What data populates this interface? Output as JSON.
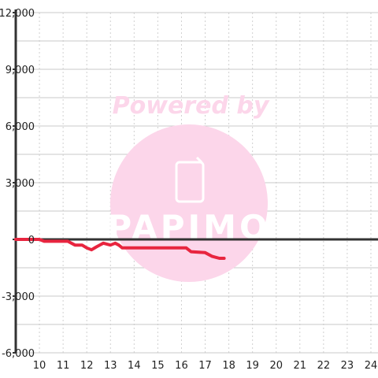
{
  "watermark": {
    "line1": "Powered by",
    "brand": "PAPIMO",
    "color": "#fcd6ea"
  },
  "colors": {
    "series": "#e8253f",
    "zero_line": "#333333",
    "axis": "#333333",
    "grid_major": "#c8c8c8",
    "grid_minor": "#d0d0d0",
    "background": "#ffffff"
  },
  "chart_data": {
    "type": "line",
    "title": "",
    "xlabel": "",
    "ylabel": "",
    "xlim": [
      9,
      24.3
    ],
    "ylim": [
      -6000,
      12000
    ],
    "x_ticks": [
      10,
      11,
      12,
      13,
      14,
      15,
      16,
      17,
      18,
      19,
      20,
      21,
      22,
      23,
      24
    ],
    "x_tick_labels": [
      "10",
      "11",
      "12",
      "13",
      "14",
      "15",
      "16",
      "17",
      "18",
      "19",
      "20",
      "21",
      "22",
      "23",
      "24"
    ],
    "y_ticks": [
      -6000,
      -3000,
      0,
      3000,
      6000,
      9000,
      12000
    ],
    "y_tick_labels": [
      "-6,000",
      "-3,000",
      "0",
      "3,000",
      "6,000",
      "9,000",
      "12,000"
    ],
    "grid": true,
    "legend": "none",
    "series": [
      {
        "x": [
          9.0,
          10.0,
          10.2,
          10.4,
          11.2,
          11.5,
          11.8,
          12.0,
          12.2,
          12.4,
          12.7,
          13.0,
          13.2,
          13.35,
          13.5,
          14.0,
          15.0,
          16.0,
          16.2,
          16.4,
          17.0,
          17.3,
          17.6,
          17.8
        ],
        "y": [
          0,
          0,
          -100,
          -100,
          -100,
          -300,
          -300,
          -450,
          -550,
          -400,
          -200,
          -300,
          -200,
          -300,
          -450,
          -450,
          -450,
          -450,
          -450,
          -650,
          -700,
          -900,
          -1000,
          -1000
        ]
      }
    ]
  }
}
